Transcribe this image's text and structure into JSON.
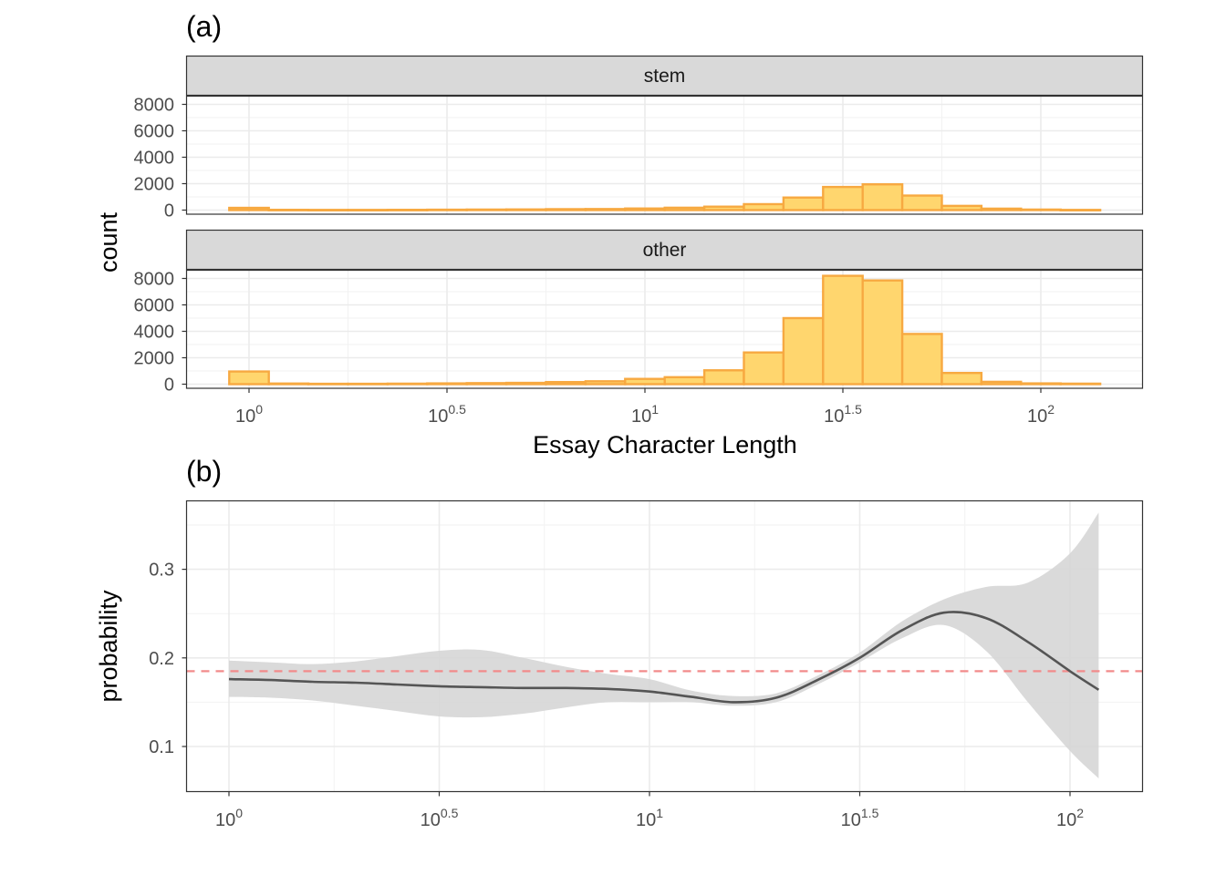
{
  "chart_data": [
    {
      "panel_label": "(a)",
      "type": "bar",
      "x_scale": "log10",
      "xlabel": "Essay Character Length",
      "ylabel": "count",
      "x_ticks": [
        {
          "value": 1,
          "base": "10",
          "exp": "0"
        },
        {
          "value": 3.1623,
          "base": "10",
          "exp": "0.5"
        },
        {
          "value": 10,
          "base": "10",
          "exp": "1"
        },
        {
          "value": 31.623,
          "base": "10",
          "exp": "1.5"
        },
        {
          "value": 100,
          "base": "10",
          "exp": "2"
        }
      ],
      "y_ticks": [
        "0",
        "2000",
        "4000",
        "6000",
        "8000"
      ],
      "ylim": [
        0,
        8600
      ],
      "grid": true,
      "bar_fill": "#ffd66e",
      "bar_stroke": "#f7a941",
      "bin_edges_log10": [
        -0.05,
        0.05,
        0.15,
        0.25,
        0.35,
        0.45,
        0.55,
        0.65,
        0.75,
        0.85,
        0.95,
        1.05,
        1.15,
        1.25,
        1.35,
        1.45,
        1.55,
        1.65,
        1.75,
        1.85,
        1.95,
        2.05,
        2.15
      ],
      "facets": [
        {
          "strip": "stem",
          "values": [
            170,
            20,
            15,
            15,
            20,
            30,
            40,
            50,
            70,
            80,
            120,
            180,
            260,
            450,
            950,
            1750,
            1950,
            1100,
            320,
            110,
            40,
            15
          ]
        },
        {
          "strip": "other",
          "values": [
            960,
            50,
            30,
            30,
            40,
            60,
            80,
            100,
            160,
            220,
            400,
            530,
            1050,
            2400,
            5000,
            8200,
            7850,
            3800,
            850,
            180,
            60,
            40
          ]
        }
      ]
    },
    {
      "panel_label": "(b)",
      "type": "line",
      "x_scale": "log10",
      "xlabel": "",
      "ylabel": "probability",
      "x_ticks": [
        {
          "value": 1,
          "base": "10",
          "exp": "0"
        },
        {
          "value": 3.1623,
          "base": "10",
          "exp": "0.5"
        },
        {
          "value": 10,
          "base": "10",
          "exp": "1"
        },
        {
          "value": 31.623,
          "base": "10",
          "exp": "1.5"
        },
        {
          "value": 100,
          "base": "10",
          "exp": "2"
        }
      ],
      "y_ticks": [
        "0.1",
        "0.2",
        "0.3"
      ],
      "ylim": [
        0.048,
        0.378
      ],
      "grid": true,
      "reference_line": {
        "y": 0.185,
        "color": "#f28b8b",
        "style": "dashed"
      },
      "line_color": "#555555",
      "ribbon_color": "#d6d6d6",
      "series": [
        {
          "x": [
            1,
            1.26,
            1.58,
            2,
            2.51,
            3.16,
            3.98,
            5.01,
            6.31,
            7.94,
            10,
            12.6,
            15.8,
            20,
            25.1,
            31.6,
            39.8,
            50.1,
            63.1,
            79.4,
            100,
            117
          ],
          "y": [
            0.176,
            0.175,
            0.173,
            0.172,
            0.17,
            0.168,
            0.167,
            0.166,
            0.166,
            0.165,
            0.162,
            0.156,
            0.15,
            0.155,
            0.175,
            0.2,
            0.231,
            0.251,
            0.245,
            0.218,
            0.185,
            0.164
          ],
          "lower": [
            0.156,
            0.155,
            0.152,
            0.146,
            0.14,
            0.134,
            0.133,
            0.137,
            0.144,
            0.15,
            0.15,
            0.15,
            0.146,
            0.15,
            0.17,
            0.195,
            0.222,
            0.237,
            0.208,
            0.15,
            0.095,
            0.064
          ],
          "upper": [
            0.197,
            0.195,
            0.193,
            0.196,
            0.202,
            0.208,
            0.209,
            0.2,
            0.19,
            0.182,
            0.176,
            0.163,
            0.157,
            0.16,
            0.18,
            0.206,
            0.241,
            0.266,
            0.28,
            0.285,
            0.318,
            0.364
          ]
        }
      ]
    }
  ]
}
